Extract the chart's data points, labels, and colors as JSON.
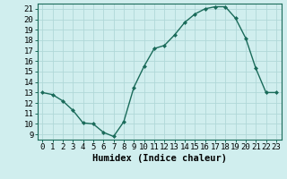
{
  "x": [
    0,
    1,
    2,
    3,
    4,
    5,
    6,
    7,
    8,
    9,
    10,
    11,
    12,
    13,
    14,
    15,
    16,
    17,
    18,
    19,
    20,
    21,
    22,
    23
  ],
  "y": [
    13,
    12.8,
    12.2,
    11.3,
    10.1,
    10.0,
    9.2,
    8.8,
    10.2,
    13.5,
    15.5,
    17.2,
    17.5,
    18.5,
    19.7,
    20.5,
    21.0,
    21.2,
    21.2,
    20.1,
    18.2,
    15.3,
    13.0,
    13.0
  ],
  "line_color": "#1a6b5a",
  "marker_color": "#1a6b5a",
  "bg_color": "#d0eeee",
  "grid_color": "#b0d8d8",
  "xlabel": "Humidex (Indice chaleur)",
  "xlim": [
    -0.5,
    23.5
  ],
  "ylim": [
    8.5,
    21.5
  ],
  "yticks": [
    9,
    10,
    11,
    12,
    13,
    14,
    15,
    16,
    17,
    18,
    19,
    20,
    21
  ],
  "xticks": [
    0,
    1,
    2,
    3,
    4,
    5,
    6,
    7,
    8,
    9,
    10,
    11,
    12,
    13,
    14,
    15,
    16,
    17,
    18,
    19,
    20,
    21,
    22,
    23
  ],
  "xtick_labels": [
    "0",
    "1",
    "2",
    "3",
    "4",
    "5",
    "6",
    "7",
    "8",
    "9",
    "10",
    "11",
    "12",
    "13",
    "14",
    "15",
    "16",
    "17",
    "18",
    "19",
    "20",
    "21",
    "22",
    "23"
  ],
  "font_size": 6.5,
  "xlabel_fontsize": 7.5
}
